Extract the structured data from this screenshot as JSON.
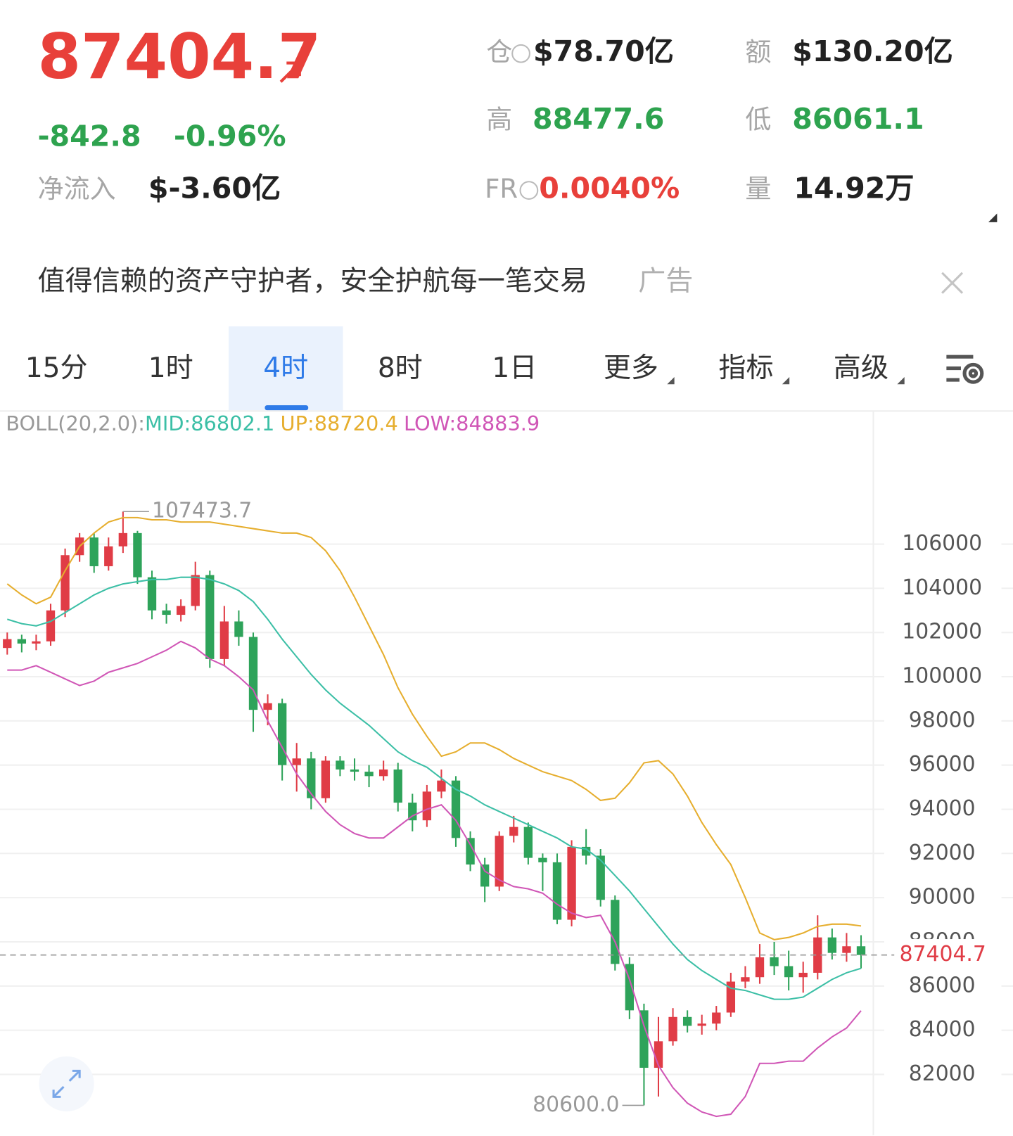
{
  "header": {
    "price": "87404.7",
    "change": "-842.8",
    "change_pct": "-0.96%",
    "net_inflow_label": "净流入",
    "net_inflow": "$-3.60亿",
    "stats": [
      {
        "label": "仓",
        "value": "$78.70亿"
      },
      {
        "label": "额",
        "value": "$130.20亿"
      },
      {
        "label": "高",
        "value": "88477.6"
      },
      {
        "label": "低",
        "value": "86061.1"
      },
      {
        "label": "FR",
        "value": "0.0040%"
      },
      {
        "label": "量",
        "value": "14.92万"
      }
    ]
  },
  "ad": {
    "text": "值得信赖的资产守护者，安全护航每一笔交易",
    "tag": "广告"
  },
  "tabs": [
    "15分",
    "1时",
    "4时",
    "8时",
    "1日",
    "更多",
    "指标",
    "高级"
  ],
  "chart_data": {
    "type": "candlestick",
    "indicator_label": "BOLL(20,2.0):",
    "up_color": "#e03c46",
    "down_color": "#2ea35a",
    "categories": [
      null,
      null,
      null,
      null,
      null,
      null,
      null,
      null,
      null,
      null,
      null,
      null,
      null,
      null,
      null,
      null,
      null,
      null,
      null,
      null,
      null,
      null,
      null,
      null,
      null,
      null,
      null,
      null,
      null,
      null,
      null,
      null,
      null,
      null,
      null,
      null,
      null,
      null,
      null,
      null,
      null,
      null,
      null,
      null,
      null,
      null,
      null,
      null,
      null,
      null,
      null,
      null,
      null,
      null,
      null,
      null,
      null,
      null,
      null,
      null
    ],
    "open": [
      101300,
      101700,
      101500,
      101600,
      103000,
      105500,
      106300,
      105000,
      105900,
      106500,
      104500,
      103000,
      102800,
      103200,
      104600,
      100800,
      102500,
      101800,
      98500,
      98800,
      96000,
      96300,
      94500,
      96200,
      95800,
      95700,
      95500,
      95800,
      94300,
      93500,
      94800,
      95300,
      92700,
      91500,
      90500,
      92800,
      93200,
      91800,
      91600,
      89000,
      92300,
      91900,
      89900,
      87000,
      84900,
      82300,
      83500,
      84600,
      84200,
      84300,
      84800,
      86200,
      86400,
      87300,
      86900,
      86400,
      86600,
      88200,
      87500,
      87800
    ],
    "high": [
      102000,
      101900,
      101900,
      103300,
      105800,
      106500,
      106500,
      106300,
      107473.7,
      106600,
      104800,
      103300,
      103500,
      105200,
      104800,
      103200,
      103000,
      102000,
      99200,
      99000,
      97000,
      96600,
      96400,
      96400,
      96300,
      96000,
      96200,
      96100,
      94700,
      95100,
      95800,
      95500,
      93000,
      91800,
      93000,
      93700,
      93400,
      92000,
      92000,
      92600,
      93100,
      92200,
      90100,
      87300,
      85200,
      84600,
      85000,
      84900,
      84700,
      85100,
      86600,
      86900,
      87900,
      88000,
      87600,
      87100,
      89200,
      88600,
      88400,
      88300
    ],
    "low": [
      101000,
      101100,
      101200,
      101400,
      102700,
      105200,
      104700,
      104800,
      105600,
      104200,
      102600,
      102400,
      102500,
      103000,
      100400,
      100500,
      101400,
      97500,
      97800,
      95300,
      94800,
      94000,
      94300,
      95500,
      95300,
      95000,
      95300,
      93900,
      93000,
      93200,
      94500,
      92300,
      91200,
      89800,
      90300,
      92500,
      91500,
      90300,
      88800,
      88700,
      91500,
      89600,
      86700,
      84500,
      80600,
      81000,
      83300,
      83900,
      83800,
      84000,
      84600,
      85900,
      86100,
      86500,
      85800,
      85700,
      86300,
      87200,
      87100,
      86800
    ],
    "close": [
      101700,
      101500,
      101600,
      103000,
      105500,
      106300,
      105000,
      105900,
      106500,
      104500,
      103000,
      102800,
      103200,
      104600,
      100800,
      102500,
      101800,
      98500,
      98800,
      96000,
      96300,
      94500,
      96200,
      95800,
      95700,
      95500,
      95800,
      94300,
      93500,
      94800,
      95300,
      92700,
      91500,
      90500,
      92800,
      93200,
      91800,
      91600,
      89000,
      92300,
      91900,
      89900,
      87000,
      84900,
      82300,
      83500,
      84600,
      84200,
      84300,
      84800,
      86200,
      86400,
      87300,
      86900,
      86400,
      86600,
      88200,
      87500,
      87800,
      87404.7
    ],
    "series": [
      {
        "name": "MID:86802.1",
        "color": "#3cbfa6",
        "values": [
          102600,
          102400,
          102300,
          102500,
          102900,
          103300,
          103700,
          104000,
          104200,
          104300,
          104400,
          104400,
          104500,
          104500,
          104400,
          104200,
          103900,
          103400,
          102600,
          101700,
          100900,
          100100,
          99400,
          98800,
          98300,
          97800,
          97200,
          96600,
          96200,
          95900,
          95400,
          94900,
          94600,
          94200,
          93900,
          93600,
          93300,
          93000,
          92700,
          92300,
          92200,
          91700,
          91000,
          90300,
          89500,
          88700,
          87900,
          87200,
          86700,
          86300,
          85900,
          85800,
          85600,
          85400,
          85400,
          85500,
          85900,
          86300,
          86600,
          86802.1
        ]
      },
      {
        "name": "UP:88720.4",
        "color": "#e6ae2e",
        "values": [
          104200,
          103700,
          103300,
          103600,
          104800,
          105900,
          106500,
          107000,
          107200,
          107200,
          107100,
          107100,
          107000,
          107000,
          107000,
          106900,
          106800,
          106700,
          106600,
          106500,
          106500,
          106300,
          105700,
          104800,
          103600,
          102300,
          101000,
          99500,
          98300,
          97300,
          96400,
          96600,
          97000,
          97000,
          96700,
          96300,
          96000,
          95700,
          95500,
          95300,
          94900,
          94400,
          94500,
          95200,
          96100,
          96200,
          95600,
          94600,
          93400,
          92400,
          91500,
          90000,
          88400,
          88100,
          88200,
          88400,
          88700,
          88800,
          88800,
          88720.4
        ]
      },
      {
        "name": "LOW:84883.9",
        "color": "#d056b6",
        "values": [
          100300,
          100300,
          100500,
          100200,
          99900,
          99600,
          99800,
          100200,
          100400,
          100600,
          100900,
          101200,
          101600,
          101300,
          100800,
          100500,
          100000,
          99400,
          98000,
          96800,
          95600,
          94700,
          93900,
          93300,
          92900,
          92700,
          92700,
          93200,
          93700,
          94000,
          94200,
          93500,
          92400,
          91200,
          90800,
          90500,
          90400,
          90200,
          89700,
          89300,
          89100,
          89200,
          88000,
          86300,
          84200,
          82400,
          81400,
          80700,
          80300,
          80100,
          80200,
          81000,
          82500,
          82500,
          82600,
          82600,
          83200,
          83700,
          84100,
          84883.9
        ]
      }
    ],
    "ylim": [
      79346,
      110944
    ],
    "yticks": [
      82000,
      84000,
      86000,
      88000,
      90000,
      92000,
      94000,
      96000,
      98000,
      100000,
      102000,
      104000,
      106000
    ],
    "grid": true,
    "max_label": 107473.7,
    "min_label": {
      "value": 80600,
      "label": "80600.0"
    },
    "last_price": 87404.7
  }
}
